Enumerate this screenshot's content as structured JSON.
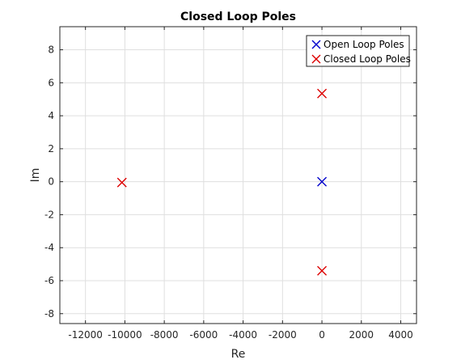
{
  "chart_data": {
    "type": "scatter",
    "title": "Closed Loop Poles",
    "xlabel": "Re",
    "ylabel": "Im",
    "xlim": [
      -13300,
      4800
    ],
    "ylim": [
      -8.6,
      9.4
    ],
    "xticks": [
      -12000,
      -10000,
      -8000,
      -6000,
      -4000,
      -2000,
      0,
      2000,
      4000
    ],
    "xtick_labels": [
      "-12000",
      "-10000",
      "-8000",
      "-6000",
      "-4000",
      "-2000",
      "0",
      "2000",
      "4000"
    ],
    "yticks": [
      -8,
      -6,
      -4,
      -2,
      0,
      2,
      4,
      6,
      8
    ],
    "ytick_labels": [
      "-8",
      "-6",
      "-4",
      "-2",
      "0",
      "2",
      "4",
      "6",
      "8"
    ],
    "grid": true,
    "legend_position": "top-right",
    "marker": "x",
    "series": [
      {
        "name": "Open Loop Poles",
        "color": "#0000cc",
        "points": [
          [
            0,
            0
          ]
        ]
      },
      {
        "name": "Closed Loop Poles",
        "color": "#dd0000",
        "points": [
          [
            -10150,
            -0.05
          ],
          [
            0,
            5.35
          ],
          [
            0,
            -5.4
          ]
        ]
      }
    ]
  }
}
